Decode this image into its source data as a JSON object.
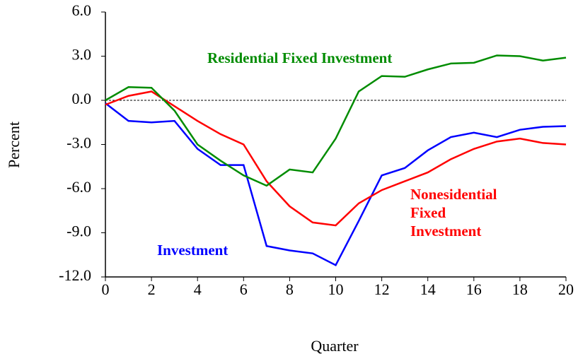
{
  "chart_data": {
    "type": "line",
    "x_label": "Quarter",
    "y_label": "Percent",
    "x": [
      0,
      1,
      2,
      3,
      4,
      5,
      6,
      7,
      8,
      9,
      10,
      11,
      12,
      13,
      14,
      15,
      16,
      17,
      18,
      19,
      20
    ],
    "series": [
      {
        "name": "Investment",
        "color": "#0000ff",
        "values": [
          -0.2,
          -1.4,
          -1.5,
          -1.4,
          -3.3,
          -4.4,
          -4.4,
          -9.9,
          -10.2,
          -10.4,
          -11.2,
          -8.2,
          -5.1,
          -4.6,
          -3.4,
          -2.5,
          -2.2,
          -2.5,
          -2.0,
          -1.8,
          -1.75
        ]
      },
      {
        "name": "Nonesidential Fixed Investment",
        "color": "#ff0000",
        "values": [
          -0.3,
          0.3,
          0.6,
          -0.4,
          -1.4,
          -2.3,
          -3.0,
          -5.5,
          -7.2,
          -8.3,
          -8.5,
          -7.0,
          -6.1,
          -5.5,
          -4.9,
          -4.0,
          -3.3,
          -2.8,
          -2.6,
          -2.9,
          -3.0
        ]
      },
      {
        "name": "Residential Fixed Investment",
        "color": "#008c00",
        "values": [
          0.0,
          0.9,
          0.85,
          -0.7,
          -3.0,
          -4.1,
          -5.1,
          -5.8,
          -4.7,
          -4.9,
          -2.6,
          0.6,
          1.65,
          1.6,
          2.1,
          2.5,
          2.55,
          3.05,
          3.0,
          2.7,
          2.9
        ]
      }
    ],
    "xlim": [
      0,
      20
    ],
    "xticks": [
      0,
      2,
      4,
      6,
      8,
      10,
      12,
      14,
      16,
      18,
      20
    ],
    "ylim": [
      -12,
      6
    ],
    "yticks": [
      {
        "value": -12,
        "label": "-12.0"
      },
      {
        "value": -9,
        "label": "-9.0"
      },
      {
        "value": -6,
        "label": "-6.0"
      },
      {
        "value": -3,
        "label": "-3.0"
      },
      {
        "value": 0,
        "label": "0.0"
      },
      {
        "value": 3,
        "label": "3.0"
      },
      {
        "value": 6,
        "label": "6.0"
      }
    ]
  }
}
